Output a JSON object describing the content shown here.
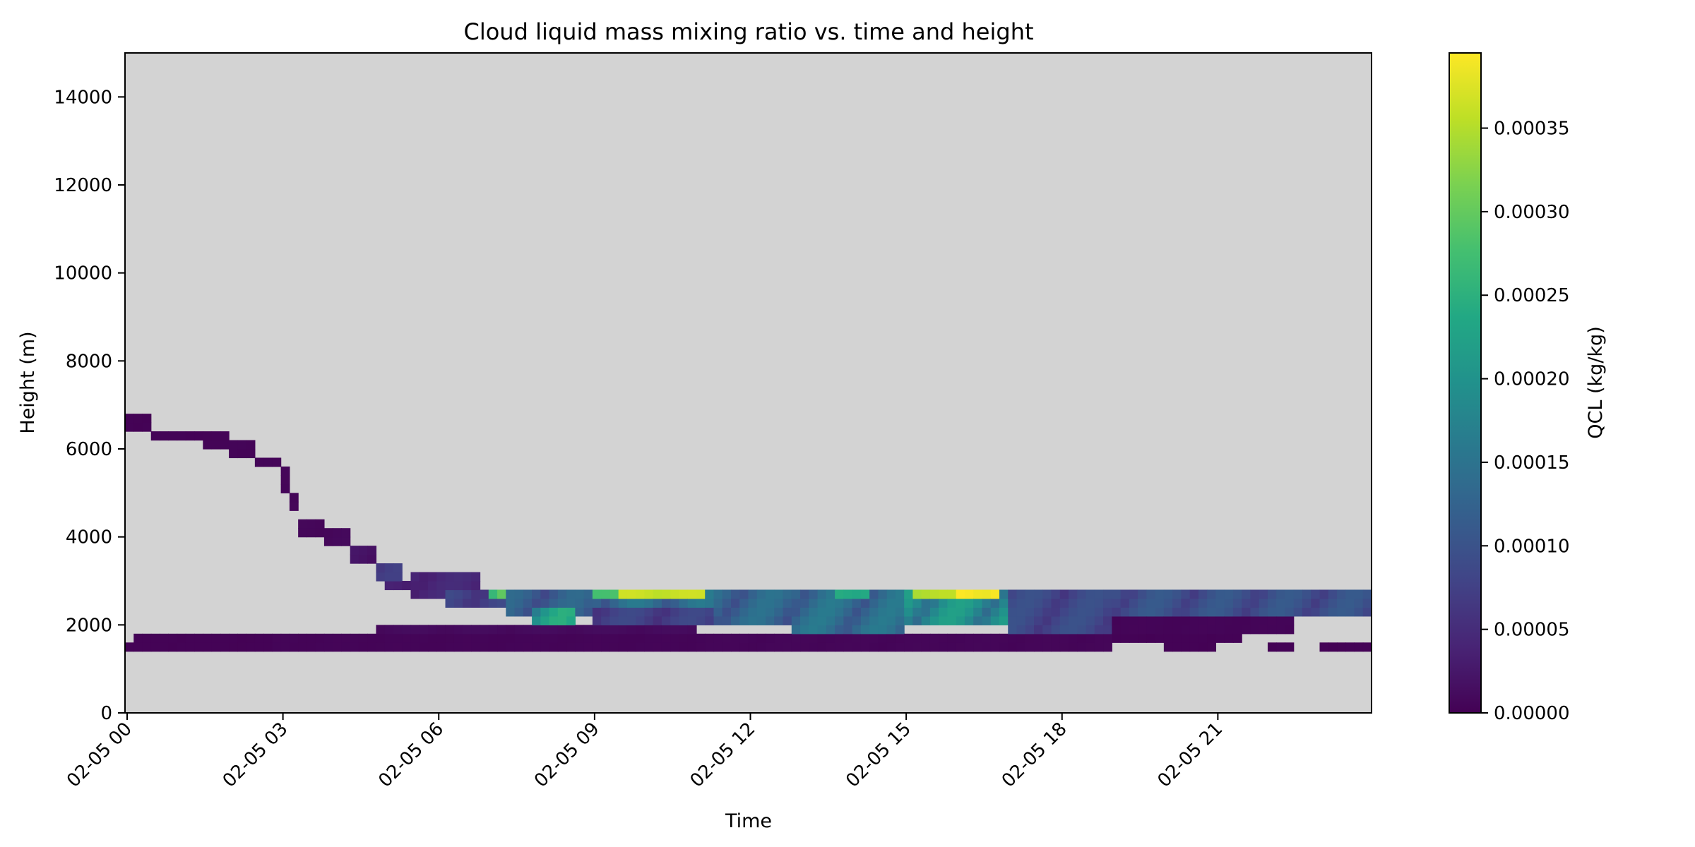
{
  "chart_data": {
    "type": "heatmap",
    "title": "Cloud liquid mass mixing ratio vs. time and height",
    "xlabel": "Time",
    "ylabel": "Height (m)",
    "colorbar_label": "QCL (kg/kg)",
    "colormap": "viridis",
    "missing_color": "#d3d3d3",
    "x_ticks": [
      "02-05 00",
      "02-05 03",
      "02-05 06",
      "02-05 09",
      "02-05 12",
      "02-05 15",
      "02-05 18",
      "02-05 21"
    ],
    "x_tick_hours": [
      0,
      3,
      6,
      9,
      12,
      15,
      18,
      21
    ],
    "xlim_hours": [
      0,
      24
    ],
    "y_ticks": [
      "0",
      "2000",
      "4000",
      "6000",
      "8000",
      "10000",
      "12000",
      "14000"
    ],
    "y_tick_values": [
      0,
      2000,
      4000,
      6000,
      8000,
      10000,
      12000,
      14000
    ],
    "ylim": [
      0,
      15000
    ],
    "colorbar_ticks": [
      "0.00000",
      "0.00005",
      "0.00010",
      "0.00015",
      "0.00020",
      "0.00025",
      "0.00030",
      "0.00035"
    ],
    "colorbar_tick_values": [
      0,
      5e-05,
      0.0001,
      0.00015,
      0.0002,
      0.00025,
      0.0003,
      0.00035
    ],
    "clim": [
      0,
      0.000395
    ],
    "time_step_hours": 0.16667,
    "height_step_m": 200,
    "cloud_bands": [
      {
        "t0": 0.0,
        "t1": 0.5,
        "h0": 6500,
        "h1": 6800,
        "q": 2e-06
      },
      {
        "t0": 0.5,
        "t1": 1.5,
        "h0": 6200,
        "h1": 6500,
        "q": 3e-06
      },
      {
        "t0": 1.5,
        "t1": 2.0,
        "h0": 6000,
        "h1": 6400,
        "q": 3e-06
      },
      {
        "t0": 2.0,
        "t1": 2.5,
        "h0": 5900,
        "h1": 6200,
        "q": 4e-06
      },
      {
        "t0": 2.5,
        "t1": 3.0,
        "h0": 5600,
        "h1": 5900,
        "q": 4e-06
      },
      {
        "t0": 3.0,
        "t1": 3.2,
        "h0": 5100,
        "h1": 5600,
        "q": 5e-06
      },
      {
        "t0": 3.2,
        "t1": 3.4,
        "h0": 4600,
        "h1": 5100,
        "q": 5e-06
      },
      {
        "t0": 3.4,
        "t1": 3.8,
        "h0": 4100,
        "h1": 4500,
        "q": 6e-06
      },
      {
        "t0": 3.8,
        "t1": 4.3,
        "h0": 3800,
        "h1": 4300,
        "q": 8e-06
      },
      {
        "t0": 4.3,
        "t1": 4.8,
        "h0": 3400,
        "h1": 3800,
        "q": 2e-05
      },
      {
        "t0": 4.8,
        "t1": 5.4,
        "h0": 3100,
        "h1": 3500,
        "q": 6e-05
      },
      {
        "t0": 5.0,
        "t1": 5.6,
        "h0": 2800,
        "h1": 3100,
        "q": 3e-05
      },
      {
        "t0": 5.5,
        "t1": 6.8,
        "h0": 2600,
        "h1": 3300,
        "q": 4e-05
      },
      {
        "t0": 6.2,
        "t1": 7.3,
        "h0": 2400,
        "h1": 2900,
        "q": 7e-05
      },
      {
        "t0": 7.0,
        "t1": 7.5,
        "h0": 2700,
        "h1": 2800,
        "q": 0.00025
      },
      {
        "t0": 7.3,
        "t1": 9.0,
        "h0": 2200,
        "h1": 2900,
        "q": 0.00011
      },
      {
        "t0": 7.8,
        "t1": 8.6,
        "h0": 2100,
        "h1": 2500,
        "q": 0.0002
      },
      {
        "t0": 9.0,
        "t1": 11.3,
        "h0": 2400,
        "h1": 2900,
        "q": 0.00013
      },
      {
        "t0": 9.0,
        "t1": 11.3,
        "h0": 2100,
        "h1": 2400,
        "q": 7e-05
      },
      {
        "t0": 11.3,
        "t1": 12.8,
        "h0": 2000,
        "h1": 2900,
        "q": 0.00012
      },
      {
        "t0": 12.8,
        "t1": 15.0,
        "h0": 1900,
        "h1": 2800,
        "q": 0.00013
      },
      {
        "t0": 15.0,
        "t1": 17.0,
        "h0": 2100,
        "h1": 2900,
        "q": 0.00018
      },
      {
        "t0": 17.0,
        "t1": 19.0,
        "h0": 1900,
        "h1": 2900,
        "q": 8e-05
      },
      {
        "t0": 19.0,
        "t1": 24.0,
        "h0": 2200,
        "h1": 2900,
        "q": 9e-05
      },
      {
        "t0": 19.0,
        "t1": 22.5,
        "h0": 1900,
        "h1": 2200,
        "q": 4e-06
      }
    ],
    "cloud_streaks": [
      {
        "t0": 9.5,
        "t1": 11.2,
        "h0": 2600,
        "h1": 2750,
        "q": 0.00036
      },
      {
        "t0": 15.2,
        "t1": 16.5,
        "h0": 2600,
        "h1": 2750,
        "q": 0.00035
      },
      {
        "t0": 16.0,
        "t1": 16.8,
        "h0": 2600,
        "h1": 2750,
        "q": 0.00039
      },
      {
        "t0": 19.0,
        "t1": 24.0,
        "h0": 2550,
        "h1": 2700,
        "q": 0.00026
      },
      {
        "t0": 9.0,
        "t1": 9.5,
        "h0": 2600,
        "h1": 2750,
        "q": 0.00028
      },
      {
        "t0": 13.6,
        "t1": 14.4,
        "h0": 2600,
        "h1": 2750,
        "q": 0.00024
      }
    ],
    "low_layer": [
      {
        "t0": 0.0,
        "t1": 2.9,
        "h0": 1400,
        "h1": 1700,
        "q": 2e-06
      },
      {
        "t0": 0.2,
        "t1": 2.9,
        "h0": 1600,
        "h1": 1800,
        "q": 2e-06
      },
      {
        "t0": 2.9,
        "t1": 11.0,
        "h0": 1500,
        "h1": 1800,
        "q": 4e-06
      },
      {
        "t0": 4.8,
        "t1": 11.0,
        "h0": 1700,
        "h1": 2000,
        "q": 1e-05
      },
      {
        "t0": 11.0,
        "t1": 19.0,
        "h0": 1500,
        "h1": 1900,
        "q": 5e-06
      },
      {
        "t0": 19.0,
        "t1": 21.5,
        "h0": 1600,
        "h1": 1800,
        "q": 2e-06
      },
      {
        "t0": 20.0,
        "t1": 21.0,
        "h0": 1400,
        "h1": 1600,
        "q": 2e-06
      },
      {
        "t0": 22.0,
        "t1": 22.5,
        "h0": 1500,
        "h1": 1600,
        "q": 2e-06
      },
      {
        "t0": 23.0,
        "t1": 24.0,
        "h0": 1500,
        "h1": 1600,
        "q": 2e-06
      }
    ]
  }
}
